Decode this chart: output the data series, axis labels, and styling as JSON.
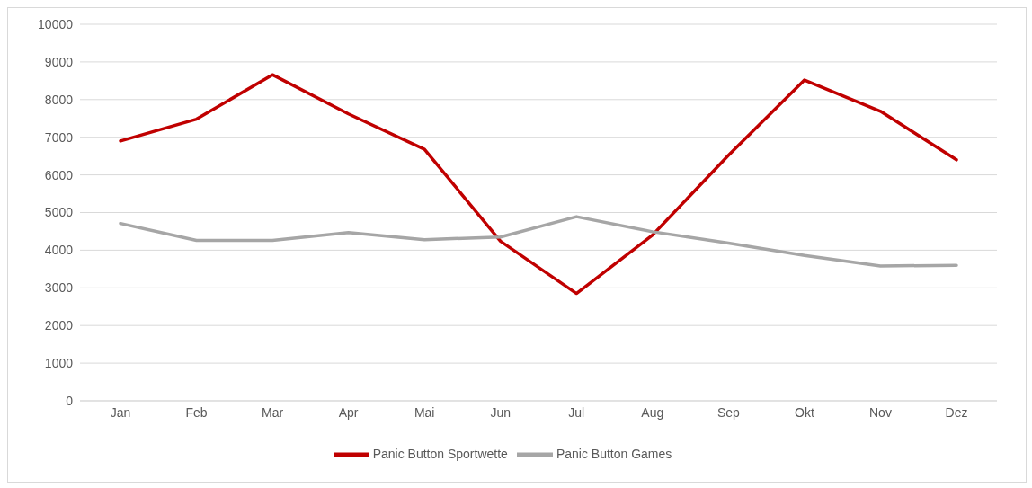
{
  "chart_data": {
    "type": "line",
    "categories": [
      "Jan",
      "Feb",
      "Mar",
      "Apr",
      "Mai",
      "Jun",
      "Jul",
      "Aug",
      "Sep",
      "Okt",
      "Nov",
      "Dez"
    ],
    "series": [
      {
        "name": "Panic Button Sportwette",
        "color": "#c00000",
        "values": [
          6900,
          7480,
          8660,
          7620,
          6680,
          4240,
          2850,
          4400,
          6520,
          8520,
          7690,
          6400
        ]
      },
      {
        "name": "Panic Button Games",
        "color": "#a6a6a6",
        "values": [
          4710,
          4260,
          4260,
          4470,
          4280,
          4350,
          4890,
          4490,
          4190,
          3860,
          3580,
          3600
        ]
      }
    ],
    "ylim": [
      0,
      10000
    ],
    "yticks": [
      0,
      1000,
      2000,
      3000,
      4000,
      5000,
      6000,
      7000,
      8000,
      9000,
      10000
    ],
    "grid": "y",
    "legend": "bottom",
    "marker": "none",
    "line_style": "solid"
  }
}
